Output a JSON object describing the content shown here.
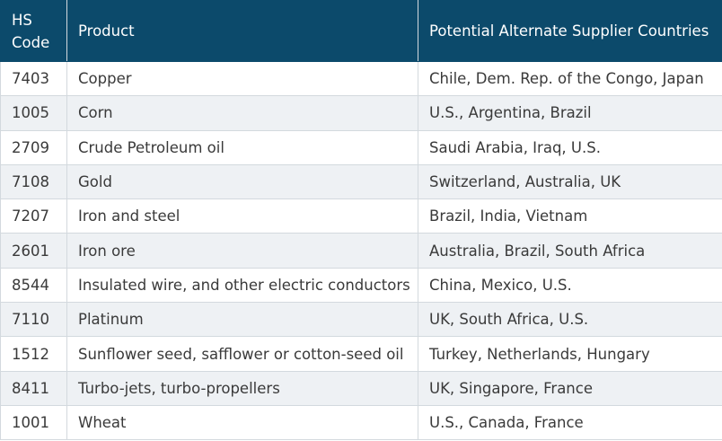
{
  "table": {
    "header": [
      "HS Code",
      "Product",
      "Potential Alternate Supplier Countries"
    ],
    "rows": [
      [
        "7403",
        "Copper",
        "Chile, Dem. Rep. of the Congo, Japan"
      ],
      [
        "1005",
        "Corn",
        "U.S., Argentina, Brazil"
      ],
      [
        "2709",
        "Crude Petroleum oil",
        "Saudi Arabia, Iraq, U.S."
      ],
      [
        "7108",
        "Gold",
        "Switzerland, Australia, UK"
      ],
      [
        "7207",
        "Iron and steel",
        "Brazil, India, Vietnam"
      ],
      [
        "2601",
        "Iron ore",
        "Australia, Brazil, South Africa"
      ],
      [
        "8544",
        "Insulated wire, and other electric conductors",
        "China, Mexico, U.S."
      ],
      [
        "7110",
        "Platinum",
        "UK, South Africa, U.S."
      ],
      [
        "1512",
        "Sunflower seed, safflower or cotton-seed oil",
        "Turkey, Netherlands, Hungary"
      ],
      [
        "8411",
        "Turbo-jets, turbo-propellers",
        "UK, Singapore, France"
      ],
      [
        "1001",
        "Wheat",
        "U.S., Canada, France"
      ]
    ]
  }
}
